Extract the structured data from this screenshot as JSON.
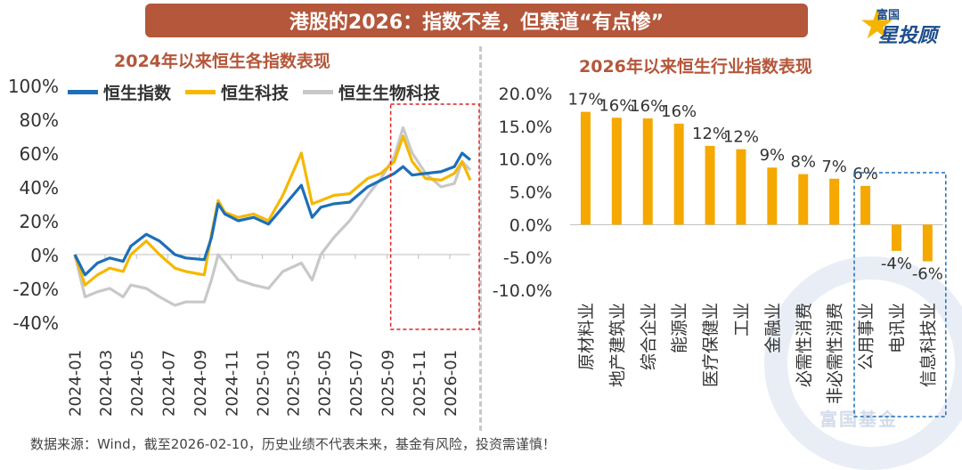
{
  "header": {
    "title": "港股的2026：指数不差，但赛道“有点惨”",
    "logo_small": "富国",
    "logo_big": "星投顾"
  },
  "footer": {
    "source": "数据来源：Wind，截至2026-02-10，历史业绩不代表未来，基金有风险，投资需谨慎！"
  },
  "watermark": "富国基金",
  "colors": {
    "banner": "#b4573b",
    "hsi": "#1c6fb8",
    "hstech": "#f5b800",
    "hsbio": "#c8c8c8",
    "bar": "#f5a800",
    "highlight_red": "#e02020",
    "highlight_blue": "#1c6fb8"
  },
  "chart_data": [
    {
      "type": "line",
      "title": "2024年以来恒生各指数表现",
      "x_ticks": [
        "2024-01",
        "2024-03",
        "2024-05",
        "2024-07",
        "2024-09",
        "2024-11",
        "2025-01",
        "2025-03",
        "2025-05",
        "2025-07",
        "2025-09",
        "2025-11",
        "2026-01"
      ],
      "y_ticks": [
        "100%",
        "80%",
        "60%",
        "40%",
        "20%",
        "0%",
        "-20%",
        "-40%"
      ],
      "ylim": [
        -40,
        100
      ],
      "x_range": [
        "2024-01-02",
        "2026-02-10"
      ],
      "legend_position": "top-left",
      "grid": false,
      "highlight": {
        "x_start": "2025-09-08",
        "x_end": "2026-02-10",
        "color": "red",
        "style": "dashed"
      },
      "series": [
        {
          "name": "恒生指数",
          "x": [
            "2024-01-02",
            "2024-01-22",
            "2024-02-15",
            "2024-03-10",
            "2024-04-05",
            "2024-04-20",
            "2024-05-20",
            "2024-06-15",
            "2024-07-15",
            "2024-08-05",
            "2024-09-10",
            "2024-09-24",
            "2024-10-07",
            "2024-10-20",
            "2024-11-15",
            "2024-12-15",
            "2025-01-13",
            "2025-02-10",
            "2025-03-18",
            "2025-04-08",
            "2025-04-25",
            "2025-05-20",
            "2025-06-20",
            "2025-07-25",
            "2025-08-20",
            "2025-09-15",
            "2025-10-02",
            "2025-10-20",
            "2025-11-15",
            "2025-12-15",
            "2026-01-10",
            "2026-01-25",
            "2026-02-10"
          ],
          "values": [
            0,
            -12,
            -5,
            -2,
            -4,
            5,
            12,
            8,
            0,
            -2,
            -3,
            10,
            30,
            24,
            20,
            22,
            18,
            28,
            41,
            22,
            28,
            30,
            31,
            40,
            44,
            48,
            52,
            47,
            48,
            49,
            52,
            60,
            56
          ]
        },
        {
          "name": "恒生科技",
          "x": [
            "2024-01-02",
            "2024-01-22",
            "2024-02-15",
            "2024-03-10",
            "2024-04-05",
            "2024-04-20",
            "2024-05-20",
            "2024-06-15",
            "2024-07-15",
            "2024-08-05",
            "2024-09-10",
            "2024-09-24",
            "2024-10-07",
            "2024-10-20",
            "2024-11-15",
            "2024-12-15",
            "2025-01-13",
            "2025-02-10",
            "2025-03-18",
            "2025-04-08",
            "2025-04-25",
            "2025-05-20",
            "2025-06-20",
            "2025-07-25",
            "2025-08-20",
            "2025-09-15",
            "2025-10-02",
            "2025-10-20",
            "2025-11-15",
            "2025-12-15",
            "2026-01-10",
            "2026-01-25",
            "2026-02-10"
          ],
          "values": [
            0,
            -18,
            -12,
            -8,
            -10,
            0,
            8,
            0,
            -8,
            -10,
            -12,
            12,
            32,
            25,
            22,
            24,
            20,
            35,
            60,
            30,
            32,
            35,
            36,
            45,
            48,
            55,
            70,
            55,
            45,
            44,
            48,
            55,
            44
          ]
        },
        {
          "name": "恒生生物科技",
          "x": [
            "2024-01-02",
            "2024-01-22",
            "2024-02-15",
            "2024-03-10",
            "2024-04-05",
            "2024-04-20",
            "2024-05-20",
            "2024-06-15",
            "2024-07-15",
            "2024-08-05",
            "2024-09-10",
            "2024-09-24",
            "2024-10-07",
            "2024-10-20",
            "2024-11-15",
            "2024-12-15",
            "2025-01-13",
            "2025-02-10",
            "2025-03-18",
            "2025-04-08",
            "2025-04-25",
            "2025-05-20",
            "2025-06-20",
            "2025-07-25",
            "2025-08-20",
            "2025-09-15",
            "2025-10-02",
            "2025-10-20",
            "2025-11-15",
            "2025-12-15",
            "2026-01-10",
            "2026-01-25",
            "2026-02-10"
          ],
          "values": [
            0,
            -25,
            -22,
            -20,
            -25,
            -18,
            -20,
            -25,
            -30,
            -28,
            -28,
            -15,
            0,
            -5,
            -15,
            -18,
            -20,
            -10,
            -5,
            -15,
            0,
            10,
            20,
            35,
            45,
            58,
            75,
            60,
            48,
            40,
            42,
            55,
            50
          ]
        }
      ]
    },
    {
      "type": "bar",
      "title": "2026年以来恒生行业指数表现",
      "categories": [
        "原材料业",
        "地产建筑业",
        "综合企业",
        "能源业",
        "医疗保健业",
        "工业",
        "金融业",
        "必需性消费",
        "非必需性消费",
        "公用事业",
        "电讯业",
        "信息科技业"
      ],
      "values": [
        17,
        16,
        16,
        16,
        12,
        12,
        9,
        8,
        7,
        6,
        -4,
        -6
      ],
      "plotted_values": [
        17.2,
        16.3,
        16.2,
        15.4,
        12.0,
        11.5,
        8.7,
        7.7,
        7.0,
        5.9,
        -4.0,
        -5.6
      ],
      "data_labels": [
        "17%",
        "16%",
        "16%",
        "16%",
        "12%",
        "12%",
        "9%",
        "8%",
        "7%",
        "6%",
        "-4%",
        "-6%"
      ],
      "y_ticks": [
        "20.0%",
        "15.0%",
        "10.0%",
        "5.0%",
        "0.0%",
        "-5.0%",
        "-10.0%"
      ],
      "ylim": [
        -10,
        20
      ],
      "grid": false,
      "highlight": {
        "categories": [
          "电讯业",
          "信息科技业"
        ],
        "color": "blue",
        "style": "dashed"
      }
    }
  ]
}
